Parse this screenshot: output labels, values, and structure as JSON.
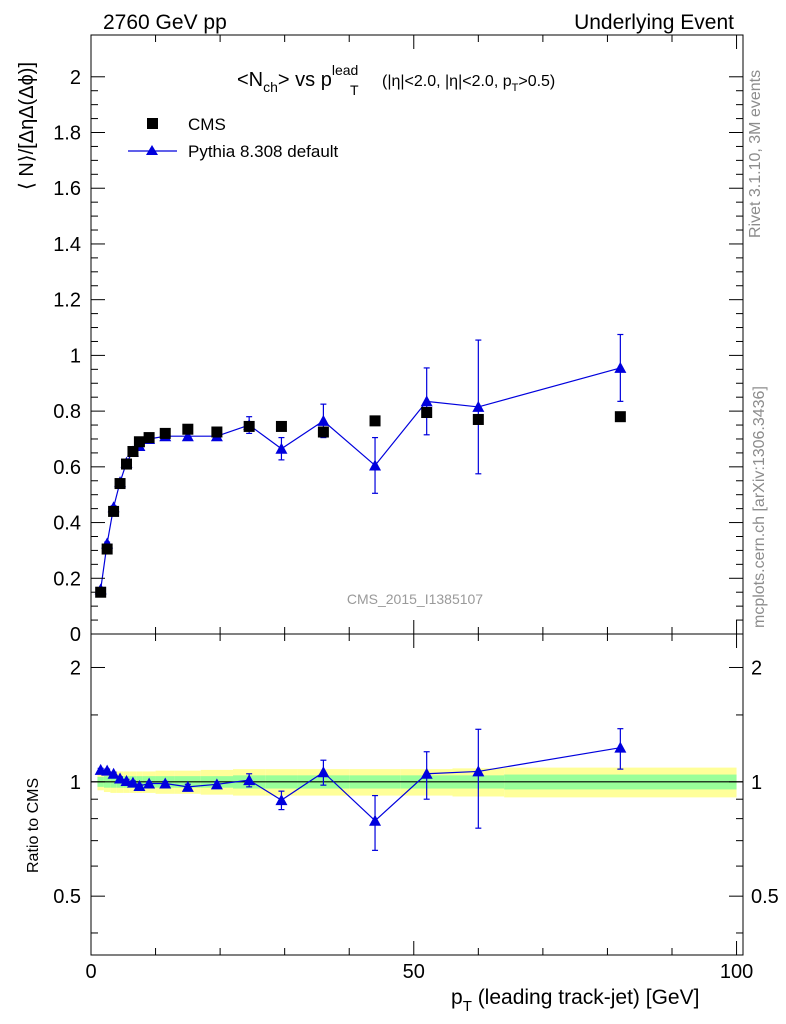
{
  "header": {
    "left": "2760 GeV pp",
    "right": "Underlying Event"
  },
  "side_labels": {
    "rivet": "Rivet 3.1.10,  3M events",
    "mcplots": "mcplots.cern.ch [arXiv:1306.3436]"
  },
  "watermark": "CMS_2015_I1385107",
  "title": {
    "main_pre": "<N",
    "main_sub": "ch",
    "main_mid": "> vs p",
    "main_sup": "lead",
    "main_sub2": "T",
    "cuts": "(|η|<2.0, |η|<2.0, p",
    "cuts_sub_j": "j",
    "cuts_sub_T": "T",
    "cuts_end": ">0.5)"
  },
  "legend": {
    "data_label": "CMS",
    "mc_label": "Pythia 8.308 default"
  },
  "axes": {
    "top_ylabel": "⟨ N⟩/[ΔηΔ(Δϕ)]",
    "bottom_ylabel": "Ratio to CMS",
    "xlabel_pre": "p",
    "xlabel_sub": "T",
    "xlabel_post": " (leading track-jet) [GeV]"
  },
  "colors": {
    "mc": "#0000dd",
    "band_inner": "#99ff99",
    "band_outer": "#ffff99",
    "data": "#000000"
  },
  "chart_data": [
    {
      "type": "scatter",
      "panel": "main",
      "xlim": [
        0,
        101
      ],
      "ylim": [
        0,
        2.15
      ],
      "yticks": [
        0,
        0.2,
        0.4,
        0.6,
        0.8,
        1,
        1.2,
        1.4,
        1.6,
        1.8,
        2
      ],
      "ytick_labels": [
        "0",
        "0.2",
        "0.4",
        "0.6",
        "0.8",
        "1",
        "1.2",
        "1.4",
        "1.6",
        "1.8",
        "2"
      ],
      "xticks": [
        0,
        50,
        100
      ],
      "xtick_labels": [
        "0",
        "50",
        "100"
      ],
      "series": [
        {
          "name": "CMS",
          "marker": "square",
          "x": [
            1.5,
            2.5,
            3.5,
            4.5,
            5.5,
            6.5,
            7.5,
            9.0,
            11.5,
            15.0,
            19.5,
            24.5,
            29.5,
            36.0,
            44.0,
            52.0,
            60.0,
            82.0
          ],
          "y": [
            0.15,
            0.305,
            0.44,
            0.54,
            0.61,
            0.655,
            0.69,
            0.705,
            0.72,
            0.735,
            0.725,
            0.745,
            0.745,
            0.725,
            0.765,
            0.795,
            0.77,
            0.78
          ]
        },
        {
          "name": "Pythia 8.308 default",
          "marker": "triangle",
          "x": [
            1.5,
            2.5,
            3.5,
            4.5,
            5.5,
            6.5,
            7.5,
            9.0,
            11.5,
            15.0,
            19.5,
            24.5,
            29.5,
            36.0,
            44.0,
            52.0,
            60.0,
            82.0
          ],
          "y": [
            0.16,
            0.325,
            0.455,
            0.545,
            0.615,
            0.655,
            0.675,
            0.7,
            0.71,
            0.71,
            0.71,
            0.75,
            0.665,
            0.765,
            0.605,
            0.835,
            0.815,
            0.955
          ],
          "yerr": [
            0.005,
            0.005,
            0.005,
            0.005,
            0.005,
            0.005,
            0.005,
            0.005,
            0.008,
            0.01,
            0.012,
            0.03,
            0.04,
            0.06,
            0.1,
            0.12,
            0.24,
            0.12
          ]
        }
      ]
    },
    {
      "type": "scatter",
      "panel": "ratio",
      "xlim": [
        0,
        101
      ],
      "ylim": [
        0.35,
        2.45
      ],
      "log_y": true,
      "yticks": [
        0.5,
        1,
        2
      ],
      "ytick_labels": [
        "0.5",
        "1",
        "2"
      ],
      "xticks": [
        0,
        50,
        100
      ],
      "xtick_labels": [
        "0",
        "50",
        "100"
      ],
      "band": {
        "x": [
          1.0,
          2.0,
          3.0,
          4.0,
          5.0,
          6.0,
          7.0,
          8.0,
          10.0,
          13.0,
          17.0,
          22.0,
          27.0,
          32.0,
          40.0,
          48.0,
          56.0,
          64.0,
          100.0
        ],
        "inner": [
          0.03,
          0.035,
          0.035,
          0.035,
          0.035,
          0.035,
          0.035,
          0.035,
          0.035,
          0.035,
          0.035,
          0.04,
          0.04,
          0.04,
          0.04,
          0.04,
          0.04,
          0.045
        ],
        "outer": [
          0.05,
          0.06,
          0.065,
          0.065,
          0.065,
          0.065,
          0.065,
          0.065,
          0.07,
          0.07,
          0.075,
          0.08,
          0.08,
          0.08,
          0.08,
          0.08,
          0.085,
          0.09
        ]
      },
      "series": [
        {
          "name": "Pythia 8.308 default",
          "x": [
            1.5,
            2.5,
            3.5,
            4.5,
            5.5,
            6.5,
            7.5,
            9.0,
            11.5,
            15.0,
            19.5,
            24.5,
            29.5,
            36.0,
            44.0,
            52.0,
            60.0,
            82.0
          ],
          "y": [
            1.075,
            1.07,
            1.05,
            1.02,
            1.005,
            0.995,
            0.975,
            0.99,
            0.99,
            0.97,
            0.985,
            1.01,
            0.895,
            1.06,
            0.79,
            1.05,
            1.065,
            1.23
          ],
          "yerr": [
            0.01,
            0.01,
            0.01,
            0.01,
            0.01,
            0.01,
            0.01,
            0.01,
            0.012,
            0.015,
            0.015,
            0.04,
            0.05,
            0.08,
            0.13,
            0.15,
            0.31,
            0.15
          ]
        }
      ]
    }
  ]
}
